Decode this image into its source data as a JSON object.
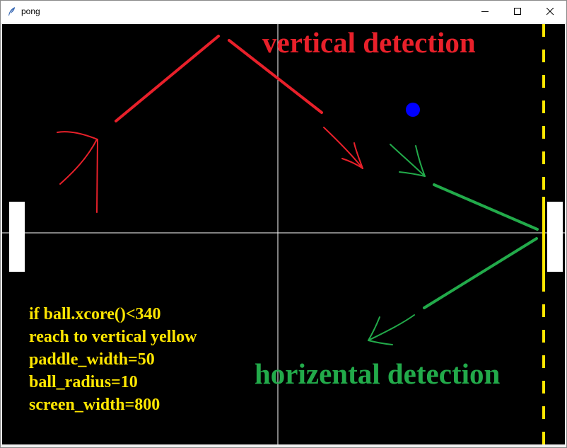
{
  "window": {
    "title": "pong",
    "icon": "feather-icon",
    "controls": [
      "minimize-icon",
      "maximize-icon",
      "close-icon"
    ]
  },
  "annotations": {
    "vertical_heading": "vertical detection",
    "horizontal_heading": "horizental detection",
    "notes": [
      "if ball.xcore()<340",
      "reach to vertical yellow",
      "paddle_width=50",
      "ball_radius=10",
      "screen_width=800"
    ]
  },
  "colors": {
    "background": "#000000",
    "paddle": "#ffffff",
    "ball": "#0000ff",
    "yellow_line": "#ffe600",
    "red_annotation": "#e8202a",
    "green_annotation": "#22aa4a",
    "crosshair": "#ffffff"
  }
}
